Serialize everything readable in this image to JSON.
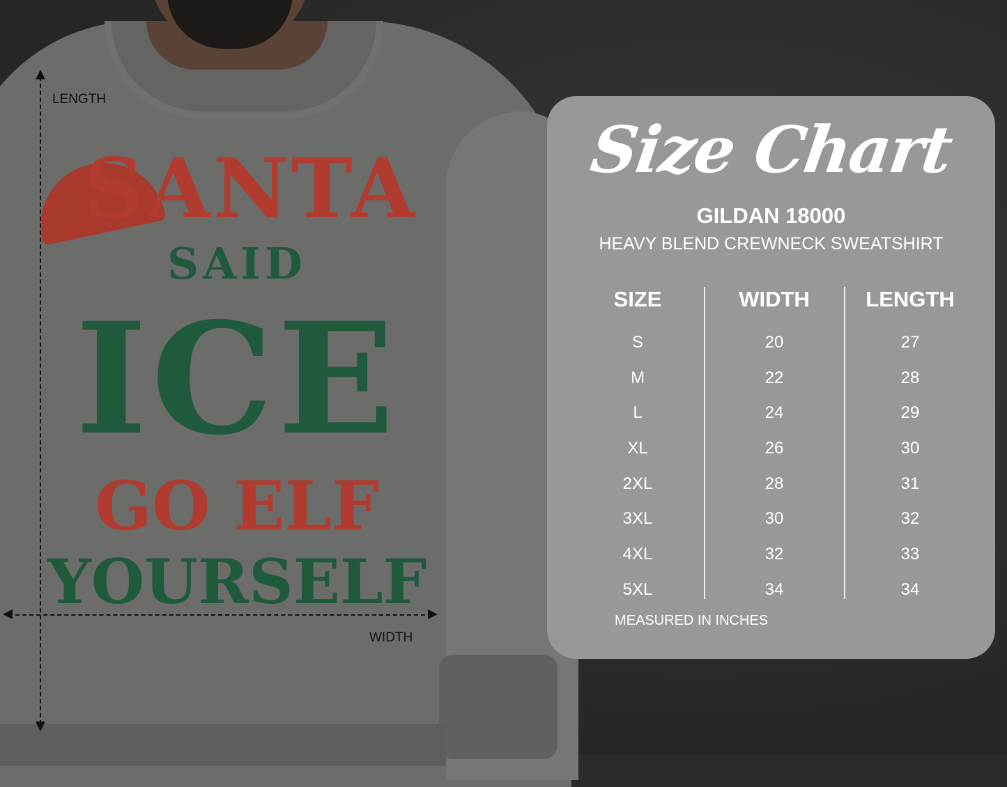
{
  "graphic": {
    "lines": [
      "SANTA",
      "SAID",
      "ICE",
      "GO ELF",
      "YOURSELF"
    ]
  },
  "dimensions": {
    "length_label": "LENGTH",
    "width_label": "WIDTH"
  },
  "size_chart": {
    "title": "Size Chart",
    "brand": "GILDAN 18000",
    "product": "HEAVY BLEND CREWNECK SWEATSHIRT",
    "columns": [
      "SIZE",
      "WIDTH",
      "LENGTH"
    ],
    "sizes": [
      "S",
      "M",
      "L",
      "XL",
      "2XL",
      "3XL",
      "4XL",
      "5XL"
    ],
    "widths": [
      "20",
      "22",
      "24",
      "26",
      "28",
      "30",
      "32",
      "34"
    ],
    "lengths": [
      "27",
      "28",
      "29",
      "30",
      "31",
      "32",
      "33",
      "34"
    ],
    "note": "MEASURED IN INCHES"
  },
  "colors": {
    "panel": "#989897",
    "red": "#b03b2e",
    "green": "#1f5a3c",
    "shirt": "#6c6c6b"
  }
}
